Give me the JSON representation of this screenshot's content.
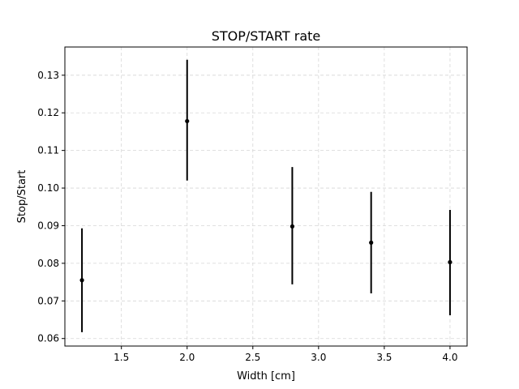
{
  "chart_data": {
    "type": "scatter",
    "title": "STOP/START rate",
    "xlabel": "Width [cm]",
    "ylabel": "Stop/Start",
    "xlim": [
      1.07,
      4.13
    ],
    "ylim": [
      0.058,
      0.1375
    ],
    "xticks": [
      1.5,
      2.0,
      2.5,
      3.0,
      3.5,
      4.0
    ],
    "xtick_labels": [
      "1.5",
      "2.0",
      "2.5",
      "3.0",
      "3.5",
      "4.0"
    ],
    "yticks": [
      0.06,
      0.07,
      0.08,
      0.09,
      0.1,
      0.11,
      0.12,
      0.13
    ],
    "ytick_labels": [
      "0.06",
      "0.07",
      "0.08",
      "0.09",
      "0.10",
      "0.11",
      "0.12",
      "0.13"
    ],
    "grid": true,
    "points": [
      {
        "x": 1.2,
        "y": 0.0755,
        "yerr_low": 0.0617,
        "yerr_high": 0.0893
      },
      {
        "x": 2.0,
        "y": 0.1178,
        "yerr_low": 0.102,
        "yerr_high": 0.1341
      },
      {
        "x": 2.8,
        "y": 0.0898,
        "yerr_low": 0.0744,
        "yerr_high": 0.1056
      },
      {
        "x": 3.4,
        "y": 0.0855,
        "yerr_low": 0.072,
        "yerr_high": 0.099
      },
      {
        "x": 4.0,
        "y": 0.0803,
        "yerr_low": 0.0662,
        "yerr_high": 0.0942
      }
    ],
    "colors": {
      "marker": "#000000",
      "grid": "#d6d6d6"
    }
  }
}
